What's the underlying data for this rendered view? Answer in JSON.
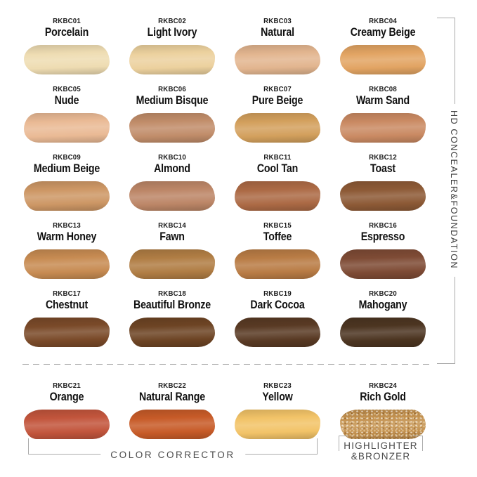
{
  "sections": {
    "right_label": "HD CONCEALER&FOUNDATION",
    "color_corrector_label": "COLOR CORRECTOR",
    "highlighter_label_line1": "HIGHLIGHTER",
    "highlighter_label_line2": "&BRONZER"
  },
  "colors": {
    "background": "#ffffff",
    "bracket_line": "#ababab",
    "section_label_text": "#4a4a4a",
    "shade_text": "#1a1a1a",
    "dashed_divider": "#9b9b9b"
  },
  "shades": [
    {
      "code": "RKBC01",
      "name": "Porcelain",
      "color": "#eedcb2"
    },
    {
      "code": "RKBC02",
      "name": "Light Ivory",
      "color": "#ecd19e"
    },
    {
      "code": "RKBC03",
      "name": "Natural",
      "color": "#e2b58f"
    },
    {
      "code": "RKBC04",
      "name": "Creamy Beige",
      "color": "#e2a463"
    },
    {
      "code": "RKBC05",
      "name": "Nude",
      "color": "#eaba95"
    },
    {
      "code": "RKBC06",
      "name": "Medium Bisque",
      "color": "#c18d6a"
    },
    {
      "code": "RKBC07",
      "name": "Pure Beige",
      "color": "#d3a05d"
    },
    {
      "code": "RKBC08",
      "name": "Warm Sand",
      "color": "#ca8a63"
    },
    {
      "code": "RKBC09",
      "name": "Medium Beige",
      "color": "#cd9765"
    },
    {
      "code": "RKBC10",
      "name": "Almond",
      "color": "#bc8667"
    },
    {
      "code": "RKBC11",
      "name": "Cool Tan",
      "color": "#ac6a45"
    },
    {
      "code": "RKBC12",
      "name": "Toast",
      "color": "#8d5a36"
    },
    {
      "code": "RKBC13",
      "name": "Warm Honey",
      "color": "#c78b52"
    },
    {
      "code": "RKBC14",
      "name": "Fawn",
      "color": "#b07d44"
    },
    {
      "code": "RKBC15",
      "name": "Toffee",
      "color": "#b97c45"
    },
    {
      "code": "RKBC16",
      "name": "Espresso",
      "color": "#7e4b35"
    },
    {
      "code": "RKBC17",
      "name": "Chestnut",
      "color": "#7a4a29"
    },
    {
      "code": "RKBC18",
      "name": "Beautiful Bronze",
      "color": "#6d4424"
    },
    {
      "code": "RKBC19",
      "name": "Dark Cocoa",
      "color": "#593a24"
    },
    {
      "code": "RKBC20",
      "name": "Mahogany",
      "color": "#4c3521"
    },
    {
      "code": "RKBC21",
      "name": "Orange",
      "color": "#c2553c"
    },
    {
      "code": "RKBC22",
      "name": "Natural Range",
      "color": "#c75b28"
    },
    {
      "code": "RKBC23",
      "name": "Yellow",
      "color": "#f2c368"
    },
    {
      "code": "RKBC24",
      "name": "Rich Gold",
      "color": "#c3914f",
      "shimmer": true
    }
  ]
}
